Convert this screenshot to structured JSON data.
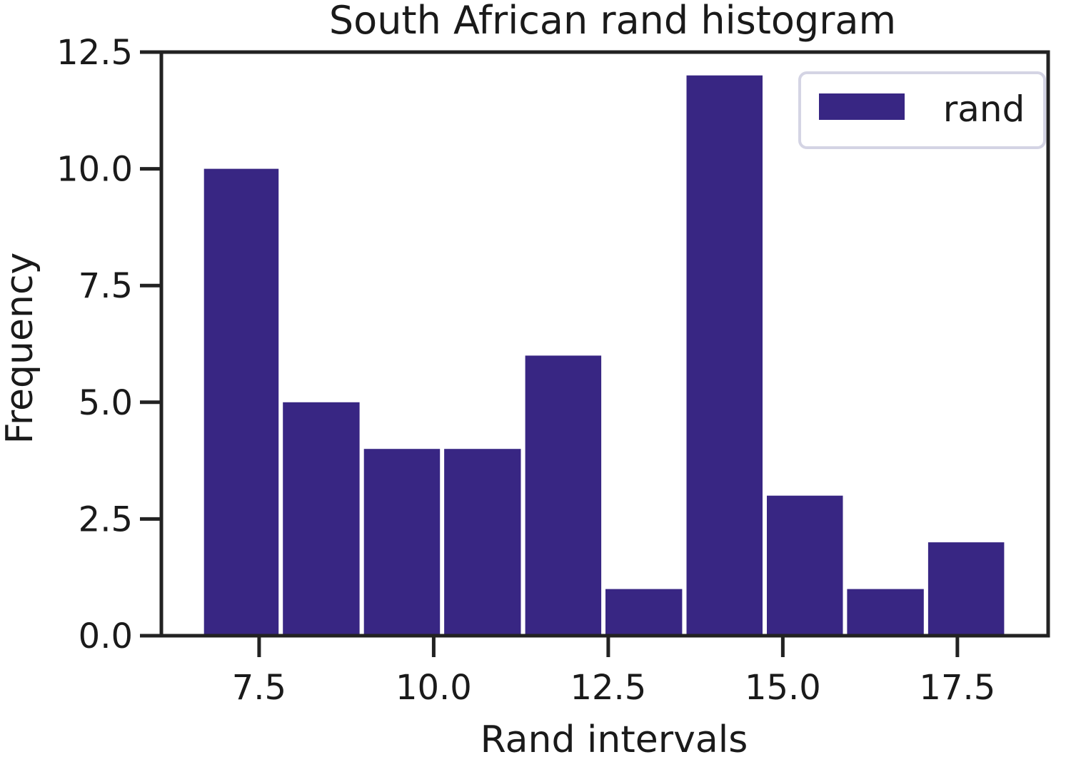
{
  "chart_data": {
    "type": "bar",
    "title": "South African rand histogram",
    "xlabel": "Rand intervals",
    "ylabel": "Frequency",
    "bins": [
      {
        "x0": 6.68,
        "x1": 7.81,
        "value": 10
      },
      {
        "x0": 7.81,
        "x1": 8.97,
        "value": 5
      },
      {
        "x0": 8.97,
        "x1": 10.12,
        "value": 4
      },
      {
        "x0": 10.12,
        "x1": 11.28,
        "value": 4
      },
      {
        "x0": 11.28,
        "x1": 12.43,
        "value": 6
      },
      {
        "x0": 12.43,
        "x1": 13.59,
        "value": 1
      },
      {
        "x0": 13.59,
        "x1": 14.74,
        "value": 12
      },
      {
        "x0": 14.74,
        "x1": 15.89,
        "value": 3
      },
      {
        "x0": 15.89,
        "x1": 17.05,
        "value": 1
      },
      {
        "x0": 17.05,
        "x1": 18.2,
        "value": 2
      }
    ],
    "xlim": [
      6.1,
      18.8
    ],
    "ylim": [
      0,
      12.5
    ],
    "xticks": [
      7.5,
      10.0,
      12.5,
      15.0,
      17.5
    ],
    "xtick_labels": [
      "7.5",
      "10.0",
      "12.5",
      "15.0",
      "17.5"
    ],
    "yticks": [
      0.0,
      2.5,
      5.0,
      7.5,
      10.0,
      12.5
    ],
    "ytick_labels": [
      "0.0",
      "2.5",
      "5.0",
      "7.5",
      "10.0",
      "12.5"
    ],
    "series": [
      {
        "name": "rand",
        "color": "#382683"
      }
    ],
    "legend": {
      "position": "top-right",
      "entries": [
        "rand"
      ]
    },
    "grid": false
  }
}
